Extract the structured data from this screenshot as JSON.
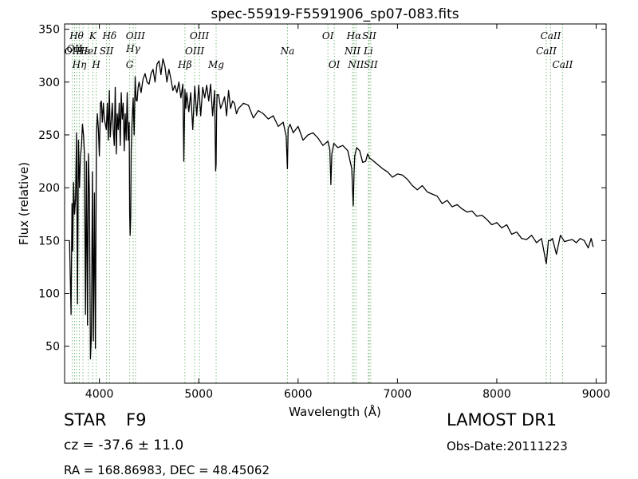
{
  "chart_data": {
    "type": "line",
    "title": "spec-55919-F5591906_sp07-083.fits",
    "xlabel": "Wavelength (Å)",
    "ylabel": "Flux (relative)",
    "xlim": [
      3650,
      9100
    ],
    "ylim": [
      15,
      355
    ],
    "xticks": [
      4000,
      5000,
      6000,
      7000,
      8000,
      9000
    ],
    "yticks": [
      50,
      100,
      150,
      200,
      250,
      300,
      350
    ],
    "grid": false,
    "line_color": "#000000",
    "marker_color": "#7fbf7f",
    "series": [
      {
        "x": [
          3700,
          3715,
          3725,
          3732,
          3740,
          3750,
          3760,
          3770,
          3780,
          3790,
          3800,
          3810,
          3820,
          3830,
          3840,
          3850,
          3860,
          3870,
          3880,
          3890,
          3900,
          3910,
          3920,
          3930,
          3940,
          3950,
          3960,
          3970,
          3980,
          3990,
          4000,
          4010,
          4020,
          4030,
          4040,
          4050,
          4060,
          4070,
          4080,
          4090,
          4100,
          4110,
          4120,
          4130,
          4140,
          4150,
          4160,
          4170,
          4180,
          4190,
          4200,
          4210,
          4220,
          4230,
          4240,
          4250,
          4260,
          4270,
          4280,
          4290,
          4300,
          4305,
          4310,
          4315,
          4320,
          4330,
          4340,
          4350,
          4360,
          4370,
          4380,
          4390,
          4400,
          4420,
          4440,
          4460,
          4480,
          4500,
          4520,
          4540,
          4560,
          4580,
          4600,
          4620,
          4640,
          4660,
          4680,
          4700,
          4720,
          4740,
          4760,
          4780,
          4800,
          4820,
          4840,
          4850,
          4861,
          4870,
          4880,
          4900,
          4920,
          4940,
          4960,
          4980,
          5000,
          5020,
          5040,
          5060,
          5080,
          5100,
          5120,
          5140,
          5160,
          5170,
          5175,
          5180,
          5185,
          5200,
          5220,
          5240,
          5260,
          5280,
          5300,
          5320,
          5340,
          5360,
          5380,
          5400,
          5450,
          5500,
          5550,
          5600,
          5650,
          5700,
          5750,
          5800,
          5850,
          5880,
          5893,
          5900,
          5920,
          5950,
          6000,
          6050,
          6100,
          6150,
          6200,
          6250,
          6300,
          6320,
          6330,
          6340,
          6360,
          6400,
          6450,
          6500,
          6540,
          6555,
          6563,
          6570,
          6590,
          6620,
          6650,
          6680,
          6700,
          6720,
          6750,
          6800,
          6850,
          6900,
          6950,
          7000,
          7050,
          7100,
          7150,
          7200,
          7250,
          7300,
          7350,
          7400,
          7450,
          7500,
          7550,
          7600,
          7650,
          7700,
          7750,
          7800,
          7850,
          7900,
          7950,
          8000,
          8050,
          8100,
          8150,
          8200,
          8250,
          8300,
          8350,
          8400,
          8450,
          8498,
          8520,
          8542,
          8560,
          8600,
          8640,
          8662,
          8680,
          8720,
          8760,
          8800,
          8840,
          8880,
          8920,
          8950,
          8970
        ],
        "y": [
          150,
          80,
          185,
          140,
          205,
          175,
          190,
          252,
          90,
          245,
          200,
          230,
          240,
          260,
          250,
          232,
          80,
          225,
          70,
          232,
          195,
          38,
          60,
          215,
          55,
          195,
          48,
          250,
          270,
          255,
          230,
          280,
          282,
          262,
          280,
          265,
          260,
          255,
          280,
          245,
          292,
          248,
          265,
          280,
          255,
          240,
          295,
          232,
          270,
          255,
          280,
          240,
          290,
          265,
          280,
          235,
          270,
          245,
          290,
          245,
          262,
          175,
          155,
          172,
          235,
          265,
          285,
          250,
          305,
          283,
          282,
          295,
          300,
          290,
          303,
          308,
          300,
          298,
          308,
          312,
          300,
          317,
          320,
          307,
          322,
          315,
          300,
          312,
          303,
          292,
          297,
          290,
          300,
          285,
          298,
          225,
          293,
          275,
          290,
          272,
          290,
          255,
          296,
          268,
          297,
          268,
          295,
          285,
          297,
          282,
          298,
          268,
          292,
          216,
          222,
          270,
          288,
          288,
          275,
          280,
          286,
          268,
          292,
          275,
          282,
          280,
          270,
          275,
          280,
          278,
          266,
          273,
          270,
          265,
          268,
          258,
          262,
          249,
          218,
          256,
          260,
          252,
          258,
          245,
          250,
          252,
          247,
          240,
          244,
          236,
          203,
          232,
          242,
          238,
          240,
          235,
          218,
          183,
          213,
          230,
          238,
          235,
          224,
          225,
          232,
          228,
          226,
          222,
          218,
          215,
          210,
          213,
          212,
          208,
          202,
          198,
          202,
          196,
          194,
          192,
          185,
          188,
          182,
          184,
          180,
          177,
          178,
          173,
          174,
          170,
          165,
          167,
          162,
          165,
          156,
          158,
          152,
          151,
          155,
          148,
          152,
          128,
          150,
          150,
          152,
          137,
          155,
          152,
          149,
          150,
          151,
          148,
          152,
          150,
          143,
          152,
          144
        ]
      }
    ],
    "line_markers": [
      {
        "wavelength": 3727,
        "label": "OII",
        "row": 3
      },
      {
        "wavelength": 3750,
        "label": "OII",
        "row": 2
      },
      {
        "wavelength": 3771,
        "label": "Hθ",
        "row": 1
      },
      {
        "wavelength": 3798,
        "label": "Hη",
        "row": 4
      },
      {
        "wavelength": 3835,
        "label": "Hε",
        "row": 3
      },
      {
        "wavelength": 3889,
        "label": "HeI",
        "row": 3
      },
      {
        "wavelength": 3934,
        "label": "K",
        "row": 1
      },
      {
        "wavelength": 3968,
        "label": "H",
        "row": 4
      },
      {
        "wavelength": 4072,
        "label": "SII",
        "row": 3
      },
      {
        "wavelength": 4102,
        "label": "Hδ",
        "row": 1
      },
      {
        "wavelength": 4305,
        "label": "G",
        "row": 4
      },
      {
        "wavelength": 4340,
        "label": "Hγ",
        "row": 2
      },
      {
        "wavelength": 4363,
        "label": "OIII",
        "row": 1
      },
      {
        "wavelength": 4861,
        "label": "Hβ",
        "row": 4
      },
      {
        "wavelength": 4959,
        "label": "OIII",
        "row": 3
      },
      {
        "wavelength": 5007,
        "label": "OIII",
        "row": 1
      },
      {
        "wavelength": 5175,
        "label": "Mg",
        "row": 4
      },
      {
        "wavelength": 5893,
        "label": "Na",
        "row": 3
      },
      {
        "wavelength": 6300,
        "label": "OI",
        "row": 1
      },
      {
        "wavelength": 6364,
        "label": "OI",
        "row": 4
      },
      {
        "wavelength": 6548,
        "label": "NII",
        "row": 3
      },
      {
        "wavelength": 6563,
        "label": "Hα",
        "row": 1
      },
      {
        "wavelength": 6583,
        "label": "NII",
        "row": 4
      },
      {
        "wavelength": 6707,
        "label": "Li",
        "row": 3
      },
      {
        "wavelength": 6716,
        "label": "SII",
        "row": 1
      },
      {
        "wavelength": 6731,
        "label": "SII",
        "row": 4
      },
      {
        "wavelength": 8498,
        "label": "CaII",
        "row": 3
      },
      {
        "wavelength": 8542,
        "label": "CaII",
        "row": 1
      },
      {
        "wavelength": 8662,
        "label": "CaII",
        "row": 4
      }
    ]
  },
  "info": {
    "object_type": "STAR",
    "subclass": "F9",
    "survey": "LAMOST DR1",
    "redshift": "cz = -37.6 ± 11.0",
    "obs_date": "Obs-Date:20111223",
    "coords": "RA = 168.86983, DEC = 48.45062"
  }
}
